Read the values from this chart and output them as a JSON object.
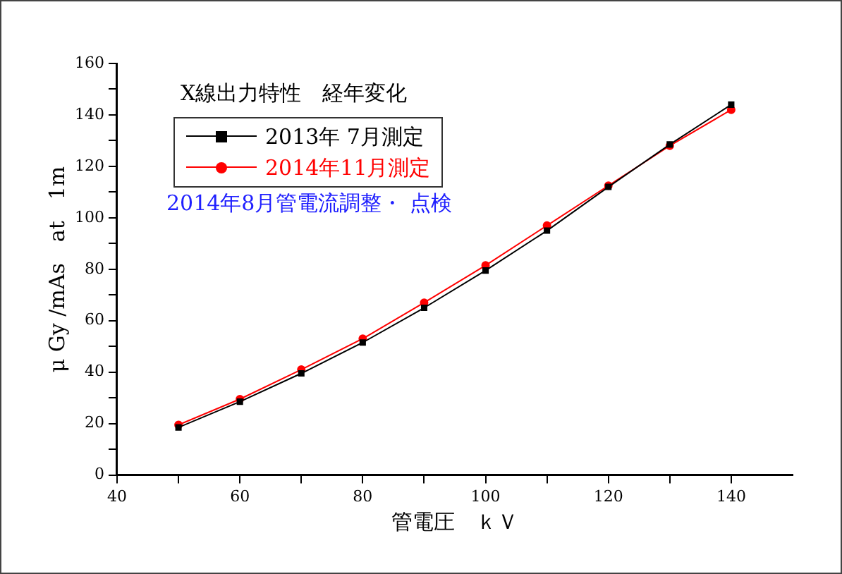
{
  "chart_data": {
    "type": "line",
    "title": "X線出力特性　経年変化",
    "xlabel": "管電圧　ｋＶ",
    "ylabel": "μ Gy /mAs　at　1m",
    "annotations": [
      "2014年8月管電流調整・ 点検"
    ],
    "x": [
      50,
      60,
      70,
      80,
      90,
      100,
      110,
      120,
      130,
      140
    ],
    "series": [
      {
        "name": "2013年 7月測定",
        "color": "#000000",
        "marker": "square",
        "values": [
          18.5,
          28.5,
          39.5,
          51.5,
          65,
          79.5,
          95,
          112,
          128.5,
          144
        ]
      },
      {
        "name": "2014年11月測定",
        "color": "#ff0000",
        "marker": "circle",
        "values": [
          19.5,
          29.5,
          41,
          53,
          67,
          81.5,
          97,
          112.5,
          128,
          142
        ]
      }
    ],
    "xlim": [
      40,
      150
    ],
    "xticks": [
      40,
      {
        "value": 50,
        "label": null
      },
      60,
      {
        "value": 70,
        "label": null
      },
      80,
      {
        "value": 90,
        "label": null
      },
      100,
      {
        "value": 110,
        "label": null
      },
      120,
      {
        "value": 130,
        "label": null
      },
      140
    ],
    "ylim": [
      0,
      160
    ],
    "yticks": [
      0,
      {
        "value": 10,
        "label": null
      },
      20,
      {
        "value": 30,
        "label": null
      },
      40,
      {
        "value": 50,
        "label": null
      },
      60,
      {
        "value": 70,
        "label": null
      },
      80,
      {
        "value": 90,
        "label": null
      },
      100,
      {
        "value": 110,
        "label": null
      },
      120,
      {
        "value": 130,
        "label": null
      },
      140,
      {
        "value": 150,
        "label": null
      },
      160
    ],
    "grid": false,
    "legend": "top left",
    "line_style": "solid"
  }
}
